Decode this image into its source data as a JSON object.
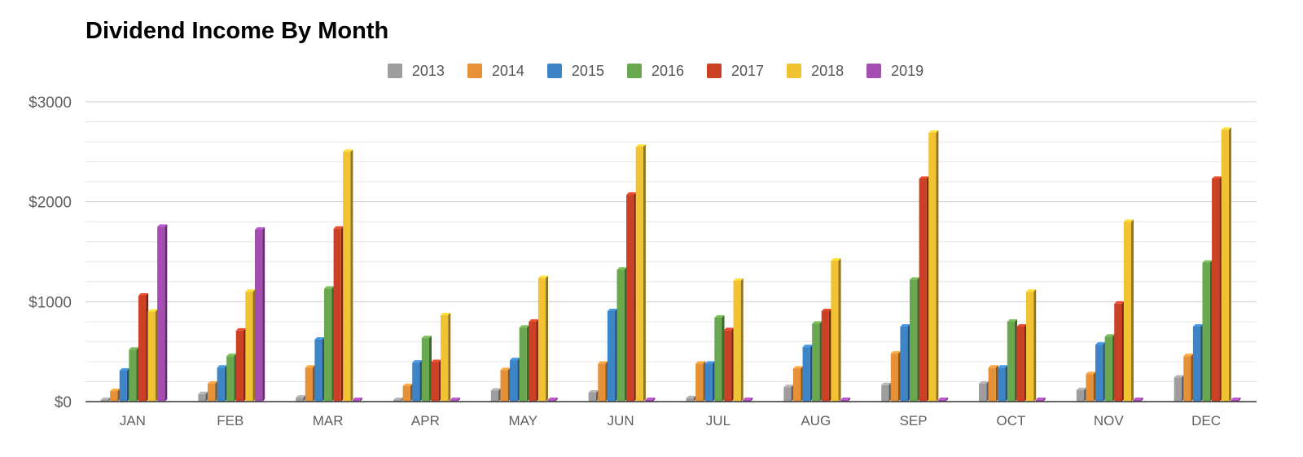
{
  "chart_data": {
    "type": "bar",
    "title": "Dividend Income By Month",
    "xlabel": "",
    "ylabel": "",
    "ylim": [
      0,
      3000
    ],
    "y_ticks": [
      {
        "value": 0,
        "label": "$0"
      },
      {
        "value": 1000,
        "label": "$1000"
      },
      {
        "value": 2000,
        "label": "$2000"
      },
      {
        "value": 3000,
        "label": "$3000"
      }
    ],
    "minor_gridlines": true,
    "legend_position": "top",
    "categories": [
      "JAN",
      "FEB",
      "MAR",
      "APR",
      "MAY",
      "JUN",
      "JUL",
      "AUG",
      "SEP",
      "OCT",
      "NOV",
      "DEC"
    ],
    "series": [
      {
        "name": "2013",
        "color": "#9e9e9e",
        "values": [
          2,
          75,
          40,
          5,
          110,
          90,
          35,
          145,
          165,
          180,
          115,
          240
        ]
      },
      {
        "name": "2014",
        "color": "#e69138",
        "values": [
          105,
          180,
          340,
          155,
          315,
          380,
          380,
          330,
          480,
          340,
          275,
          455
        ]
      },
      {
        "name": "2015",
        "color": "#3d85c6",
        "values": [
          310,
          340,
          620,
          390,
          415,
          905,
          380,
          545,
          750,
          340,
          570,
          750
        ]
      },
      {
        "name": "2016",
        "color": "#6aa84f",
        "values": [
          520,
          455,
          1130,
          635,
          740,
          1320,
          840,
          780,
          1220,
          800,
          650,
          1390
        ]
      },
      {
        "name": "2017",
        "color": "#cc4125",
        "values": [
          1060,
          710,
          1730,
          395,
          800,
          2070,
          715,
          905,
          2230,
          750,
          980,
          2230
        ]
      },
      {
        "name": "2018",
        "color": "#f1c232",
        "values": [
          900,
          1100,
          2500,
          865,
          1235,
          2550,
          1210,
          1410,
          2690,
          1100,
          1800,
          2720
        ]
      },
      {
        "name": "2019",
        "color": "#a64db4",
        "values": [
          1750,
          1720,
          0,
          0,
          0,
          0,
          0,
          0,
          0,
          0,
          0,
          0
        ]
      }
    ]
  }
}
